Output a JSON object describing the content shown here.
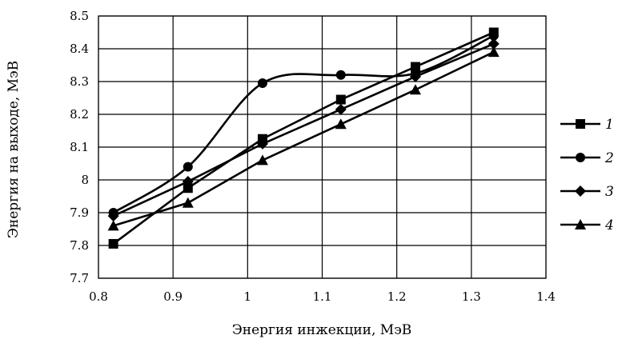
{
  "chart_data": {
    "type": "line",
    "xlabel": "Энергия инжекции, МэВ",
    "ylabel": "Энергия на выходе, МэВ",
    "xlim": [
      0.8,
      1.4
    ],
    "ylim": [
      7.7,
      8.5
    ],
    "x_ticks": [
      0.8,
      0.9,
      1.0,
      1.1,
      1.2,
      1.3,
      1.4
    ],
    "x_tick_labels": [
      "0.8",
      "0.9",
      "1",
      "1.1",
      "1.2",
      "1.3",
      "1.4"
    ],
    "y_ticks": [
      7.7,
      7.8,
      7.9,
      8.0,
      8.1,
      8.2,
      8.3,
      8.4,
      8.5
    ],
    "y_tick_labels": [
      "7.7",
      "7.8",
      "7.9",
      "8",
      "8.1",
      "8.2",
      "8.3",
      "8.4",
      "8.5"
    ],
    "grid": true,
    "legend_position": "right",
    "x": [
      0.82,
      0.92,
      1.02,
      1.125,
      1.225,
      1.33
    ],
    "series": [
      {
        "name": "1",
        "marker": "square",
        "smooth": false,
        "values": [
          7.805,
          7.975,
          8.125,
          8.245,
          8.345,
          8.45
        ]
      },
      {
        "name": "2",
        "marker": "circle",
        "smooth": true,
        "values": [
          7.9,
          8.04,
          8.295,
          8.32,
          8.325,
          8.44
        ]
      },
      {
        "name": "3",
        "marker": "diamond",
        "smooth": false,
        "values": [
          7.89,
          7.995,
          8.11,
          8.215,
          8.315,
          8.415
        ]
      },
      {
        "name": "4",
        "marker": "triangle",
        "smooth": false,
        "values": [
          7.86,
          7.93,
          8.06,
          8.17,
          8.275,
          8.39
        ]
      }
    ],
    "colors": {
      "line": "#000000",
      "grid": "#000000",
      "background": "#ffffff"
    }
  }
}
